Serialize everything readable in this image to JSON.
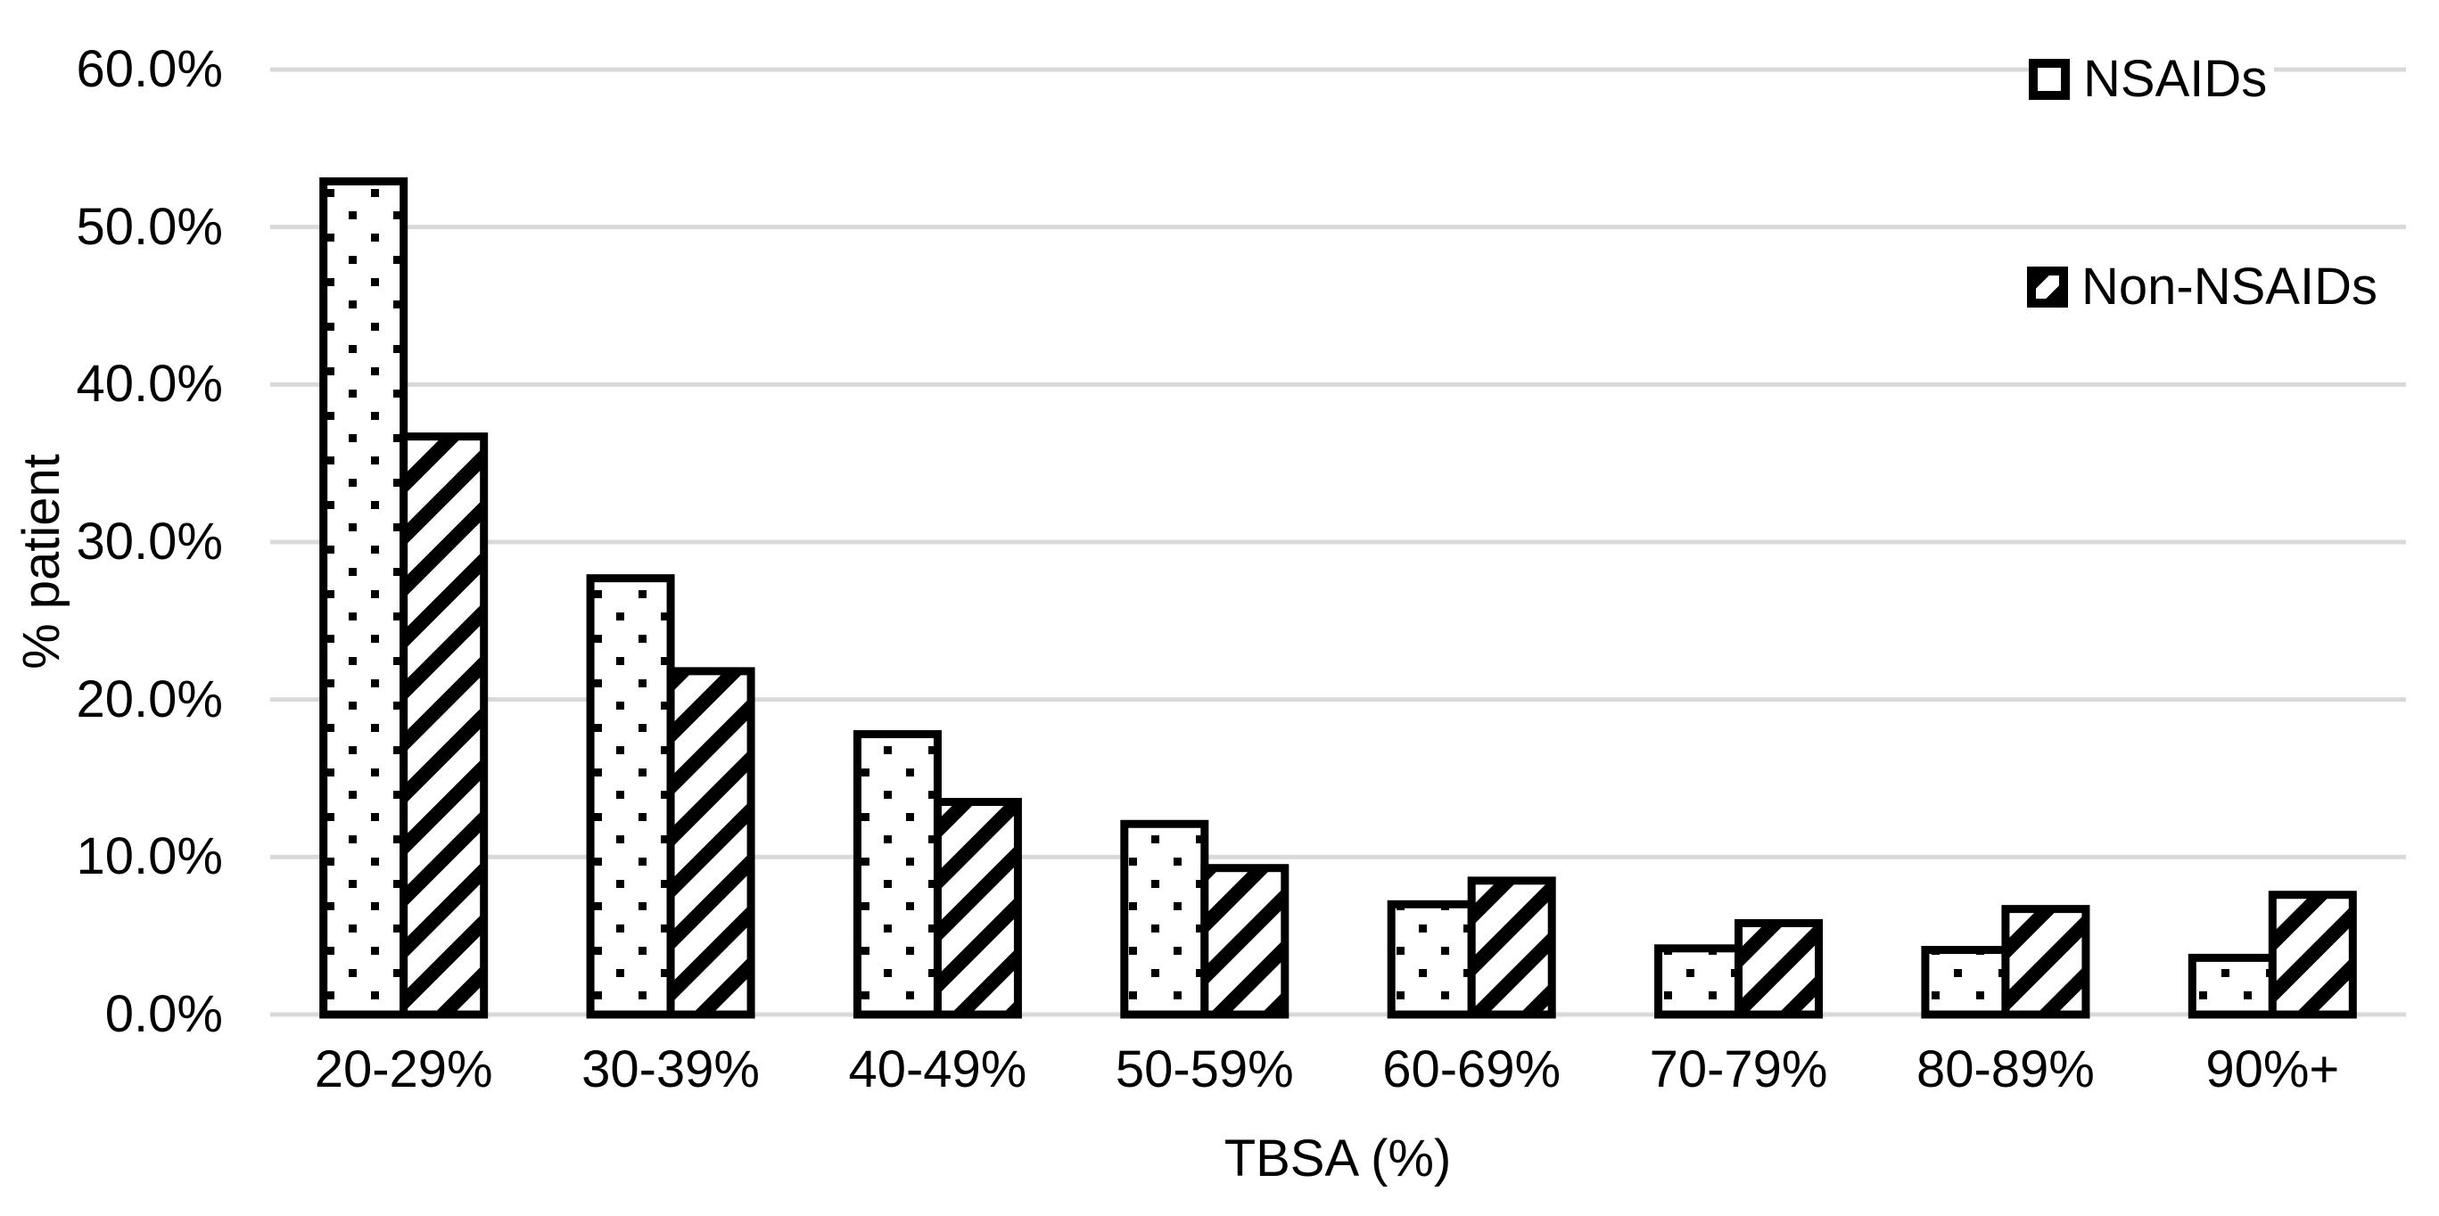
{
  "chart_data": {
    "type": "bar",
    "categories": [
      "20-29%",
      "30-39%",
      "40-49%",
      "50-59%",
      "60-69%",
      "70-79%",
      "80-89%",
      "90%+"
    ],
    "series": [
      {
        "name": "NSAIDs",
        "pattern": "dots",
        "values": [
          52.9,
          27.7,
          17.8,
          12.1,
          7.0,
          4.2,
          4.1,
          3.6
        ]
      },
      {
        "name": "Non-NSAIDs",
        "pattern": "diagonal-stripes",
        "values": [
          36.7,
          21.8,
          13.5,
          9.3,
          8.5,
          5.8,
          6.7,
          7.6
        ]
      }
    ],
    "title": "",
    "xlabel": "TBSA (%)",
    "ylabel": "% patient",
    "ylim": [
      0,
      60
    ],
    "ytick_step": 10,
    "ytick_labels": [
      "0.0%",
      "10.0%",
      "20.0%",
      "30.0%",
      "40.0%",
      "50.0%",
      "60.0%"
    ],
    "grid": true,
    "legend_position": "top-right",
    "colors": {
      "bar_outline": "#000000",
      "bar_fill": "#ffffff",
      "pattern_ink": "#000000",
      "gridline": "#d9d9d9",
      "background": "#ffffff",
      "text": "#000000"
    }
  }
}
